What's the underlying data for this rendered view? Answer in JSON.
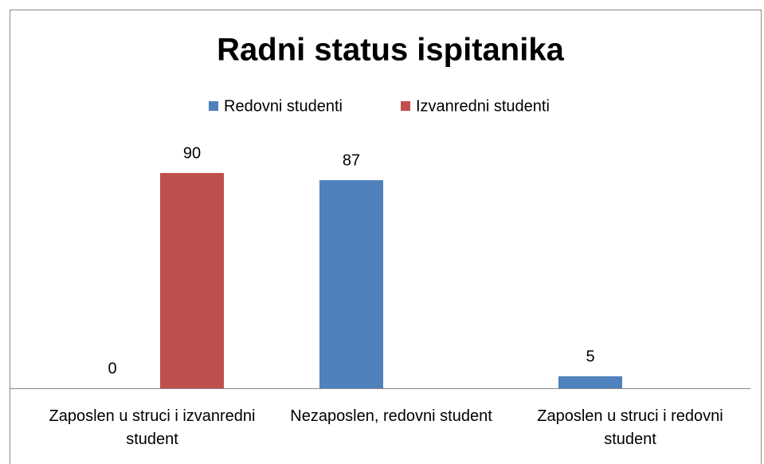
{
  "chart_data": {
    "type": "bar",
    "title": "Radni status ispitanika",
    "categories": [
      "Zaposlen u struci i izvanredni student",
      "Nezaposlen, redovni student",
      "Zaposlen u struci i redovni student"
    ],
    "series": [
      {
        "name": "Redovni studenti",
        "color": "#4f81bd",
        "values": [
          0,
          87,
          5
        ]
      },
      {
        "name": "Izvanredni studenti",
        "color": "#c0504d",
        "values": [
          90,
          null,
          null
        ]
      }
    ],
    "legend": "top"
  }
}
